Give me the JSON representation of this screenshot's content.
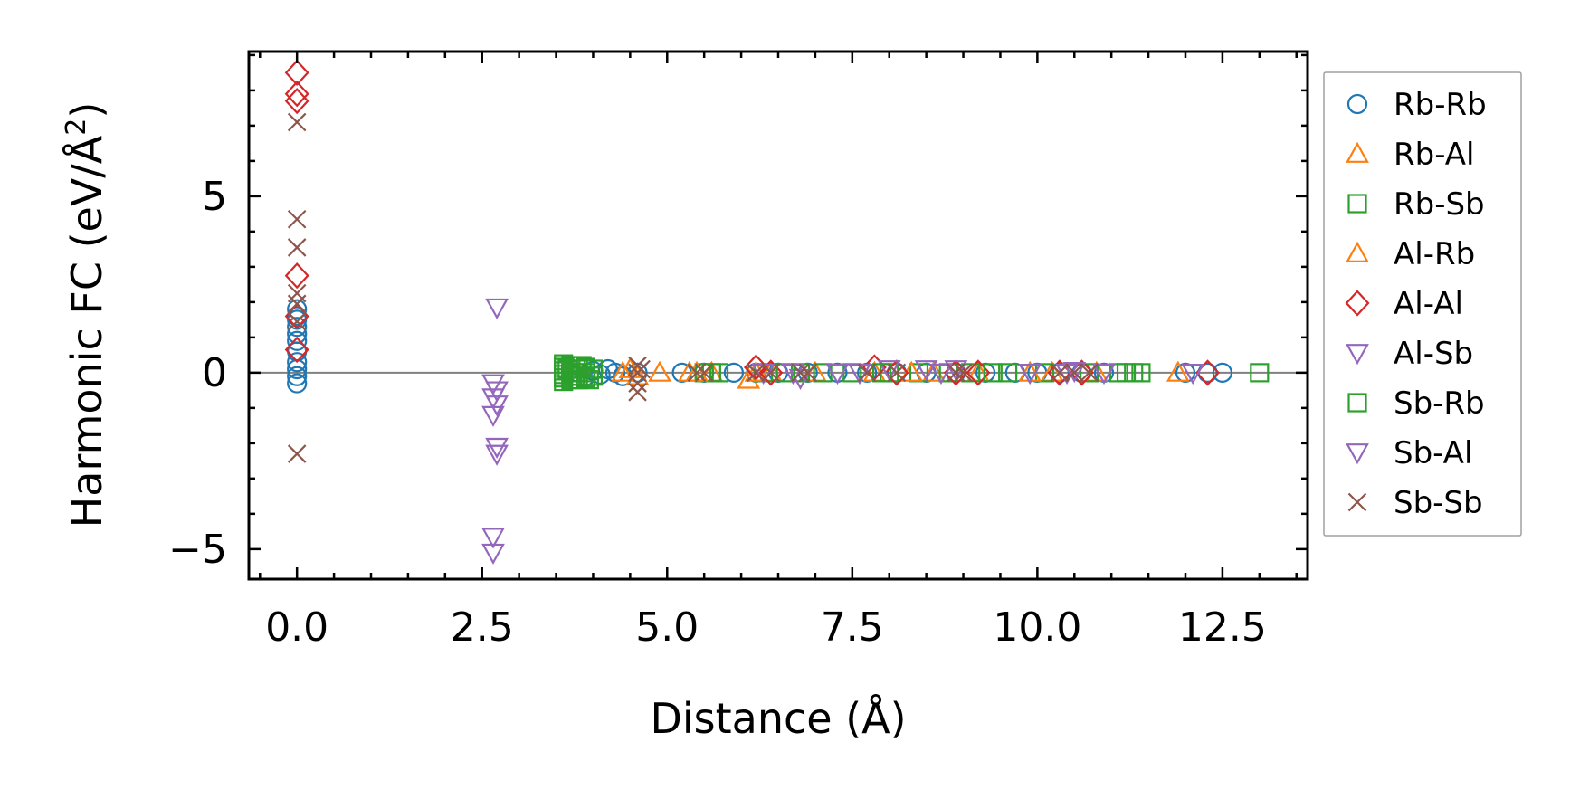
{
  "chart_data": {
    "type": "scatter",
    "title": "",
    "xlabel": "Distance (Å)",
    "ylabel": "Harmonic FC (eV/Å²)",
    "ylabel_main": "Harmonic FC (eV/Å",
    "ylabel_sup": "2",
    "ylabel_close": ")",
    "xlim": [
      -0.65,
      13.65
    ],
    "ylim": [
      -5.85,
      9.1
    ],
    "xticks": [
      0.0,
      2.5,
      5.0,
      7.5,
      10.0,
      12.5
    ],
    "xtick_labels": [
      "0.0",
      "2.5",
      "5.0",
      "7.5",
      "10.0",
      "12.5"
    ],
    "yticks": [
      -5,
      0,
      5
    ],
    "ytick_labels": [
      "−5",
      "0",
      "5"
    ],
    "zero_line": true,
    "legend_position": "outside-right",
    "series": [
      {
        "name": "Rb-Rb",
        "marker": "circle",
        "color": "#1f77b4",
        "points": [
          [
            0,
            1.8
          ],
          [
            0,
            1.6
          ],
          [
            0,
            1.5
          ],
          [
            0,
            1.3
          ],
          [
            0,
            1.1
          ],
          [
            0,
            0.9
          ],
          [
            0,
            0.6
          ],
          [
            0,
            0.3
          ],
          [
            0,
            0.1
          ],
          [
            0,
            -0.1
          ],
          [
            0,
            -0.3
          ],
          [
            3.7,
            0.1
          ],
          [
            3.8,
            0
          ],
          [
            3.9,
            -0.1
          ],
          [
            4.0,
            0.05
          ],
          [
            4.1,
            -0.05
          ],
          [
            4.2,
            0.1
          ],
          [
            4.3,
            0
          ],
          [
            4.4,
            -0.1
          ],
          [
            4.6,
            0
          ],
          [
            5.2,
            0
          ],
          [
            5.5,
            0
          ],
          [
            5.9,
            0
          ],
          [
            6.2,
            0
          ],
          [
            6.5,
            0
          ],
          [
            6.9,
            0
          ],
          [
            7.3,
            0
          ],
          [
            7.7,
            0
          ],
          [
            8.1,
            0
          ],
          [
            8.5,
            0
          ],
          [
            8.9,
            0
          ],
          [
            9.3,
            0
          ],
          [
            9.7,
            0
          ],
          [
            10.0,
            0
          ],
          [
            10.3,
            0
          ],
          [
            10.6,
            0
          ],
          [
            10.9,
            0
          ],
          [
            12.0,
            0
          ],
          [
            12.3,
            0
          ],
          [
            12.5,
            0
          ]
        ]
      },
      {
        "name": "Rb-Al",
        "marker": "triangle-up",
        "color": "#ff7f0e",
        "points": [
          [
            4.4,
            0
          ],
          [
            4.6,
            -0.1
          ],
          [
            4.9,
            0
          ],
          [
            5.3,
            0
          ],
          [
            5.6,
            0
          ],
          [
            6.1,
            -0.2
          ],
          [
            6.4,
            0
          ],
          [
            7.0,
            0
          ],
          [
            7.8,
            0
          ],
          [
            8.6,
            0
          ],
          [
            9.2,
            0
          ],
          [
            10.2,
            0
          ],
          [
            10.8,
            0
          ],
          [
            11.9,
            0
          ]
        ]
      },
      {
        "name": "Rb-Sb",
        "marker": "square",
        "color": "#2ca02c",
        "points": [
          [
            3.6,
            0.25
          ],
          [
            3.6,
            0.15
          ],
          [
            3.6,
            0.05
          ],
          [
            3.6,
            -0.05
          ],
          [
            3.6,
            -0.15
          ],
          [
            3.6,
            -0.25
          ],
          [
            3.7,
            0.2
          ],
          [
            3.7,
            0.1
          ],
          [
            3.7,
            0
          ],
          [
            3.7,
            -0.1
          ],
          [
            3.7,
            -0.2
          ],
          [
            3.8,
            0.2
          ],
          [
            3.8,
            0.1
          ],
          [
            3.8,
            0
          ],
          [
            3.8,
            -0.1
          ],
          [
            3.8,
            -0.2
          ],
          [
            3.9,
            0.15
          ],
          [
            3.9,
            0
          ],
          [
            3.9,
            -0.15
          ],
          [
            4.0,
            0.1
          ],
          [
            4.0,
            -0.1
          ],
          [
            5.5,
            0
          ],
          [
            5.6,
            0
          ],
          [
            6.3,
            0
          ],
          [
            6.8,
            0
          ],
          [
            7.1,
            0
          ],
          [
            7.5,
            0
          ],
          [
            8.0,
            0
          ],
          [
            8.4,
            0
          ],
          [
            8.8,
            0
          ],
          [
            9.1,
            0
          ],
          [
            9.6,
            0
          ],
          [
            10.1,
            0
          ],
          [
            10.7,
            0
          ],
          [
            11.1,
            0
          ],
          [
            11.2,
            0
          ],
          [
            11.3,
            0
          ],
          [
            11.4,
            0
          ],
          [
            13.0,
            0
          ]
        ]
      },
      {
        "name": "Al-Rb",
        "marker": "triangle-up",
        "color": "#ff7f0e",
        "points": [
          [
            4.5,
            0.1
          ],
          [
            5.4,
            0
          ],
          [
            6.2,
            0
          ],
          [
            8.3,
            0
          ],
          [
            9.9,
            0
          ]
        ]
      },
      {
        "name": "Al-Al",
        "marker": "diamond",
        "color": "#d62728",
        "points": [
          [
            0,
            8.5
          ],
          [
            0,
            7.9
          ],
          [
            0,
            7.7
          ],
          [
            0,
            2.75
          ],
          [
            0,
            1.6
          ],
          [
            0,
            0.65
          ],
          [
            6.2,
            0.15
          ],
          [
            6.4,
            0
          ],
          [
            7.8,
            0.15
          ],
          [
            8.1,
            0
          ],
          [
            8.9,
            0
          ],
          [
            9.2,
            0
          ],
          [
            10.3,
            0
          ],
          [
            10.6,
            0
          ],
          [
            12.3,
            0
          ]
        ]
      },
      {
        "name": "Al-Sb",
        "marker": "triangle-down",
        "color": "#9467bd",
        "points": [
          [
            2.7,
            1.85
          ],
          [
            2.65,
            -0.3
          ],
          [
            2.7,
            -0.5
          ],
          [
            2.65,
            -0.7
          ],
          [
            2.7,
            -0.9
          ],
          [
            2.65,
            -1.2
          ],
          [
            2.7,
            -2.1
          ],
          [
            2.7,
            -2.3
          ],
          [
            2.65,
            -4.65
          ],
          [
            2.65,
            -5.1
          ],
          [
            6.3,
            0
          ],
          [
            6.8,
            -0.15
          ],
          [
            7.3,
            0
          ],
          [
            8.0,
            0.1
          ],
          [
            8.5,
            0.1
          ],
          [
            8.9,
            0.1
          ],
          [
            9.9,
            0
          ],
          [
            10.5,
            0.05
          ],
          [
            10.9,
            0
          ],
          [
            12.1,
            0
          ]
        ]
      },
      {
        "name": "Sb-Rb",
        "marker": "square",
        "color": "#2ca02c",
        "points": [
          [
            3.65,
            0.1
          ],
          [
            3.75,
            -0.1
          ],
          [
            3.85,
            0.2
          ],
          [
            3.95,
            -0.2
          ],
          [
            5.7,
            0
          ],
          [
            6.6,
            0
          ],
          [
            7.9,
            0
          ],
          [
            9.4,
            0
          ]
        ]
      },
      {
        "name": "Sb-Al",
        "marker": "triangle-down",
        "color": "#9467bd",
        "points": [
          [
            6.7,
            0
          ],
          [
            7.6,
            0
          ],
          [
            8.7,
            0
          ],
          [
            10.4,
            0
          ]
        ]
      },
      {
        "name": "Sb-Sb",
        "marker": "x",
        "color": "#8c564b",
        "points": [
          [
            0,
            7.1
          ],
          [
            0,
            4.35
          ],
          [
            0,
            3.55
          ],
          [
            0,
            2.25
          ],
          [
            0,
            1.95
          ],
          [
            0,
            1.45
          ],
          [
            0,
            -2.3
          ],
          [
            4.6,
            0.2
          ],
          [
            4.6,
            0
          ],
          [
            4.6,
            -0.3
          ],
          [
            4.6,
            -0.55
          ],
          [
            4.65,
            0.1
          ],
          [
            5.4,
            0
          ],
          [
            5.5,
            0
          ],
          [
            6.2,
            0
          ],
          [
            6.4,
            0
          ],
          [
            6.8,
            0
          ],
          [
            6.9,
            0
          ],
          [
            7.7,
            0
          ],
          [
            8.1,
            0
          ],
          [
            8.9,
            0
          ],
          [
            9.0,
            0
          ],
          [
            10.3,
            0
          ],
          [
            10.5,
            0
          ],
          [
            10.7,
            0
          ]
        ]
      }
    ]
  }
}
